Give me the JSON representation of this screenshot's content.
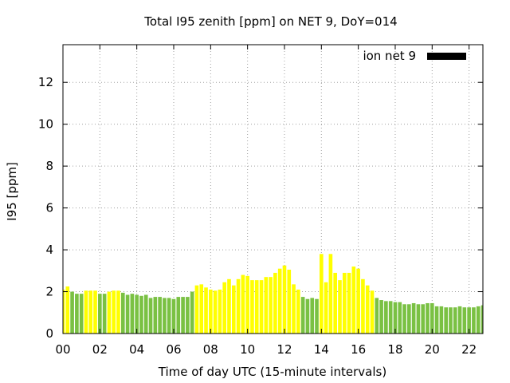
{
  "chart_data": {
    "type": "bar",
    "title": "Total I95 zenith [ppm] on NET 9, DoY=014",
    "xlabel": "Time of day UTC (15-minute intervals)",
    "ylabel": "I95 [ppm]",
    "legend": {
      "label": "ion net 9",
      "position": "top-right",
      "color": "#000000"
    },
    "ylim": [
      0,
      13.8
    ],
    "xlim": [
      0,
      22.75
    ],
    "grid": true,
    "x_ticks": [
      {
        "value": 0,
        "label": "00"
      },
      {
        "value": 2,
        "label": "02"
      },
      {
        "value": 4,
        "label": "04"
      },
      {
        "value": 6,
        "label": "06"
      },
      {
        "value": 8,
        "label": "08"
      },
      {
        "value": 10,
        "label": "10"
      },
      {
        "value": 12,
        "label": "12"
      },
      {
        "value": 14,
        "label": "14"
      },
      {
        "value": 16,
        "label": "16"
      },
      {
        "value": 18,
        "label": "18"
      },
      {
        "value": 20,
        "label": "20"
      },
      {
        "value": 22,
        "label": "22"
      }
    ],
    "y_ticks": [
      {
        "value": 0,
        "label": "0"
      },
      {
        "value": 2,
        "label": "2"
      },
      {
        "value": 4,
        "label": "4"
      },
      {
        "value": 6,
        "label": "6"
      },
      {
        "value": 8,
        "label": "8"
      },
      {
        "value": 10,
        "label": "10"
      },
      {
        "value": 12,
        "label": "12"
      }
    ],
    "bar_width_hours": 0.2,
    "colors": {
      "yellow": "#ffff00",
      "green": "#7ac143"
    },
    "bars": [
      {
        "x": 0.0,
        "value": 2.1,
        "color": "yellow"
      },
      {
        "x": 0.25,
        "value": 2.25,
        "color": "yellow"
      },
      {
        "x": 0.5,
        "value": 2.0,
        "color": "green"
      },
      {
        "x": 0.75,
        "value": 1.9,
        "color": "green"
      },
      {
        "x": 1.0,
        "value": 1.9,
        "color": "green"
      },
      {
        "x": 1.25,
        "value": 2.05,
        "color": "yellow"
      },
      {
        "x": 1.5,
        "value": 2.05,
        "color": "yellow"
      },
      {
        "x": 1.75,
        "value": 2.05,
        "color": "yellow"
      },
      {
        "x": 2.0,
        "value": 1.9,
        "color": "green"
      },
      {
        "x": 2.25,
        "value": 1.9,
        "color": "green"
      },
      {
        "x": 2.5,
        "value": 2.0,
        "color": "yellow"
      },
      {
        "x": 2.75,
        "value": 2.05,
        "color": "yellow"
      },
      {
        "x": 3.0,
        "value": 2.05,
        "color": "yellow"
      },
      {
        "x": 3.25,
        "value": 1.95,
        "color": "green"
      },
      {
        "x": 3.5,
        "value": 1.85,
        "color": "green"
      },
      {
        "x": 3.75,
        "value": 1.9,
        "color": "green"
      },
      {
        "x": 4.0,
        "value": 1.85,
        "color": "green"
      },
      {
        "x": 4.25,
        "value": 1.8,
        "color": "green"
      },
      {
        "x": 4.5,
        "value": 1.85,
        "color": "green"
      },
      {
        "x": 4.75,
        "value": 1.7,
        "color": "green"
      },
      {
        "x": 5.0,
        "value": 1.75,
        "color": "green"
      },
      {
        "x": 5.25,
        "value": 1.75,
        "color": "green"
      },
      {
        "x": 5.5,
        "value": 1.7,
        "color": "green"
      },
      {
        "x": 5.75,
        "value": 1.7,
        "color": "green"
      },
      {
        "x": 6.0,
        "value": 1.65,
        "color": "green"
      },
      {
        "x": 6.25,
        "value": 1.75,
        "color": "green"
      },
      {
        "x": 6.5,
        "value": 1.75,
        "color": "green"
      },
      {
        "x": 6.75,
        "value": 1.75,
        "color": "green"
      },
      {
        "x": 7.0,
        "value": 2.0,
        "color": "green"
      },
      {
        "x": 7.25,
        "value": 2.3,
        "color": "yellow"
      },
      {
        "x": 7.5,
        "value": 2.35,
        "color": "yellow"
      },
      {
        "x": 7.75,
        "value": 2.2,
        "color": "yellow"
      },
      {
        "x": 8.0,
        "value": 2.1,
        "color": "yellow"
      },
      {
        "x": 8.25,
        "value": 2.05,
        "color": "yellow"
      },
      {
        "x": 8.5,
        "value": 2.1,
        "color": "yellow"
      },
      {
        "x": 8.75,
        "value": 2.45,
        "color": "yellow"
      },
      {
        "x": 9.0,
        "value": 2.6,
        "color": "yellow"
      },
      {
        "x": 9.25,
        "value": 2.3,
        "color": "yellow"
      },
      {
        "x": 9.5,
        "value": 2.6,
        "color": "yellow"
      },
      {
        "x": 9.75,
        "value": 2.8,
        "color": "yellow"
      },
      {
        "x": 10.0,
        "value": 2.75,
        "color": "yellow"
      },
      {
        "x": 10.25,
        "value": 2.55,
        "color": "yellow"
      },
      {
        "x": 10.5,
        "value": 2.55,
        "color": "yellow"
      },
      {
        "x": 10.75,
        "value": 2.55,
        "color": "yellow"
      },
      {
        "x": 11.0,
        "value": 2.7,
        "color": "yellow"
      },
      {
        "x": 11.25,
        "value": 2.7,
        "color": "yellow"
      },
      {
        "x": 11.5,
        "value": 2.9,
        "color": "yellow"
      },
      {
        "x": 11.75,
        "value": 3.1,
        "color": "yellow"
      },
      {
        "x": 12.0,
        "value": 3.25,
        "color": "yellow"
      },
      {
        "x": 12.25,
        "value": 3.05,
        "color": "yellow"
      },
      {
        "x": 12.5,
        "value": 2.35,
        "color": "yellow"
      },
      {
        "x": 12.75,
        "value": 2.1,
        "color": "yellow"
      },
      {
        "x": 13.0,
        "value": 1.75,
        "color": "green"
      },
      {
        "x": 13.25,
        "value": 1.65,
        "color": "green"
      },
      {
        "x": 13.5,
        "value": 1.7,
        "color": "green"
      },
      {
        "x": 13.75,
        "value": 1.65,
        "color": "green"
      },
      {
        "x": 14.0,
        "value": 3.8,
        "color": "yellow"
      },
      {
        "x": 14.25,
        "value": 2.45,
        "color": "yellow"
      },
      {
        "x": 14.5,
        "value": 3.8,
        "color": "yellow"
      },
      {
        "x": 14.75,
        "value": 2.9,
        "color": "yellow"
      },
      {
        "x": 15.0,
        "value": 2.55,
        "color": "yellow"
      },
      {
        "x": 15.25,
        "value": 2.9,
        "color": "yellow"
      },
      {
        "x": 15.5,
        "value": 2.9,
        "color": "yellow"
      },
      {
        "x": 15.75,
        "value": 3.2,
        "color": "yellow"
      },
      {
        "x": 16.0,
        "value": 3.1,
        "color": "yellow"
      },
      {
        "x": 16.25,
        "value": 2.6,
        "color": "yellow"
      },
      {
        "x": 16.5,
        "value": 2.3,
        "color": "yellow"
      },
      {
        "x": 16.75,
        "value": 2.05,
        "color": "yellow"
      },
      {
        "x": 17.0,
        "value": 1.7,
        "color": "green"
      },
      {
        "x": 17.25,
        "value": 1.6,
        "color": "green"
      },
      {
        "x": 17.5,
        "value": 1.55,
        "color": "green"
      },
      {
        "x": 17.75,
        "value": 1.55,
        "color": "green"
      },
      {
        "x": 18.0,
        "value": 1.5,
        "color": "green"
      },
      {
        "x": 18.25,
        "value": 1.5,
        "color": "green"
      },
      {
        "x": 18.5,
        "value": 1.4,
        "color": "green"
      },
      {
        "x": 18.75,
        "value": 1.4,
        "color": "green"
      },
      {
        "x": 19.0,
        "value": 1.45,
        "color": "green"
      },
      {
        "x": 19.25,
        "value": 1.4,
        "color": "green"
      },
      {
        "x": 19.5,
        "value": 1.4,
        "color": "green"
      },
      {
        "x": 19.75,
        "value": 1.45,
        "color": "green"
      },
      {
        "x": 20.0,
        "value": 1.45,
        "color": "green"
      },
      {
        "x": 20.25,
        "value": 1.3,
        "color": "green"
      },
      {
        "x": 20.5,
        "value": 1.3,
        "color": "green"
      },
      {
        "x": 20.75,
        "value": 1.25,
        "color": "green"
      },
      {
        "x": 21.0,
        "value": 1.25,
        "color": "green"
      },
      {
        "x": 21.25,
        "value": 1.25,
        "color": "green"
      },
      {
        "x": 21.5,
        "value": 1.3,
        "color": "green"
      },
      {
        "x": 21.75,
        "value": 1.25,
        "color": "green"
      },
      {
        "x": 22.0,
        "value": 1.25,
        "color": "green"
      },
      {
        "x": 22.25,
        "value": 1.25,
        "color": "green"
      },
      {
        "x": 22.5,
        "value": 1.3,
        "color": "green"
      },
      {
        "x": 22.75,
        "value": 1.35,
        "color": "green"
      }
    ]
  }
}
